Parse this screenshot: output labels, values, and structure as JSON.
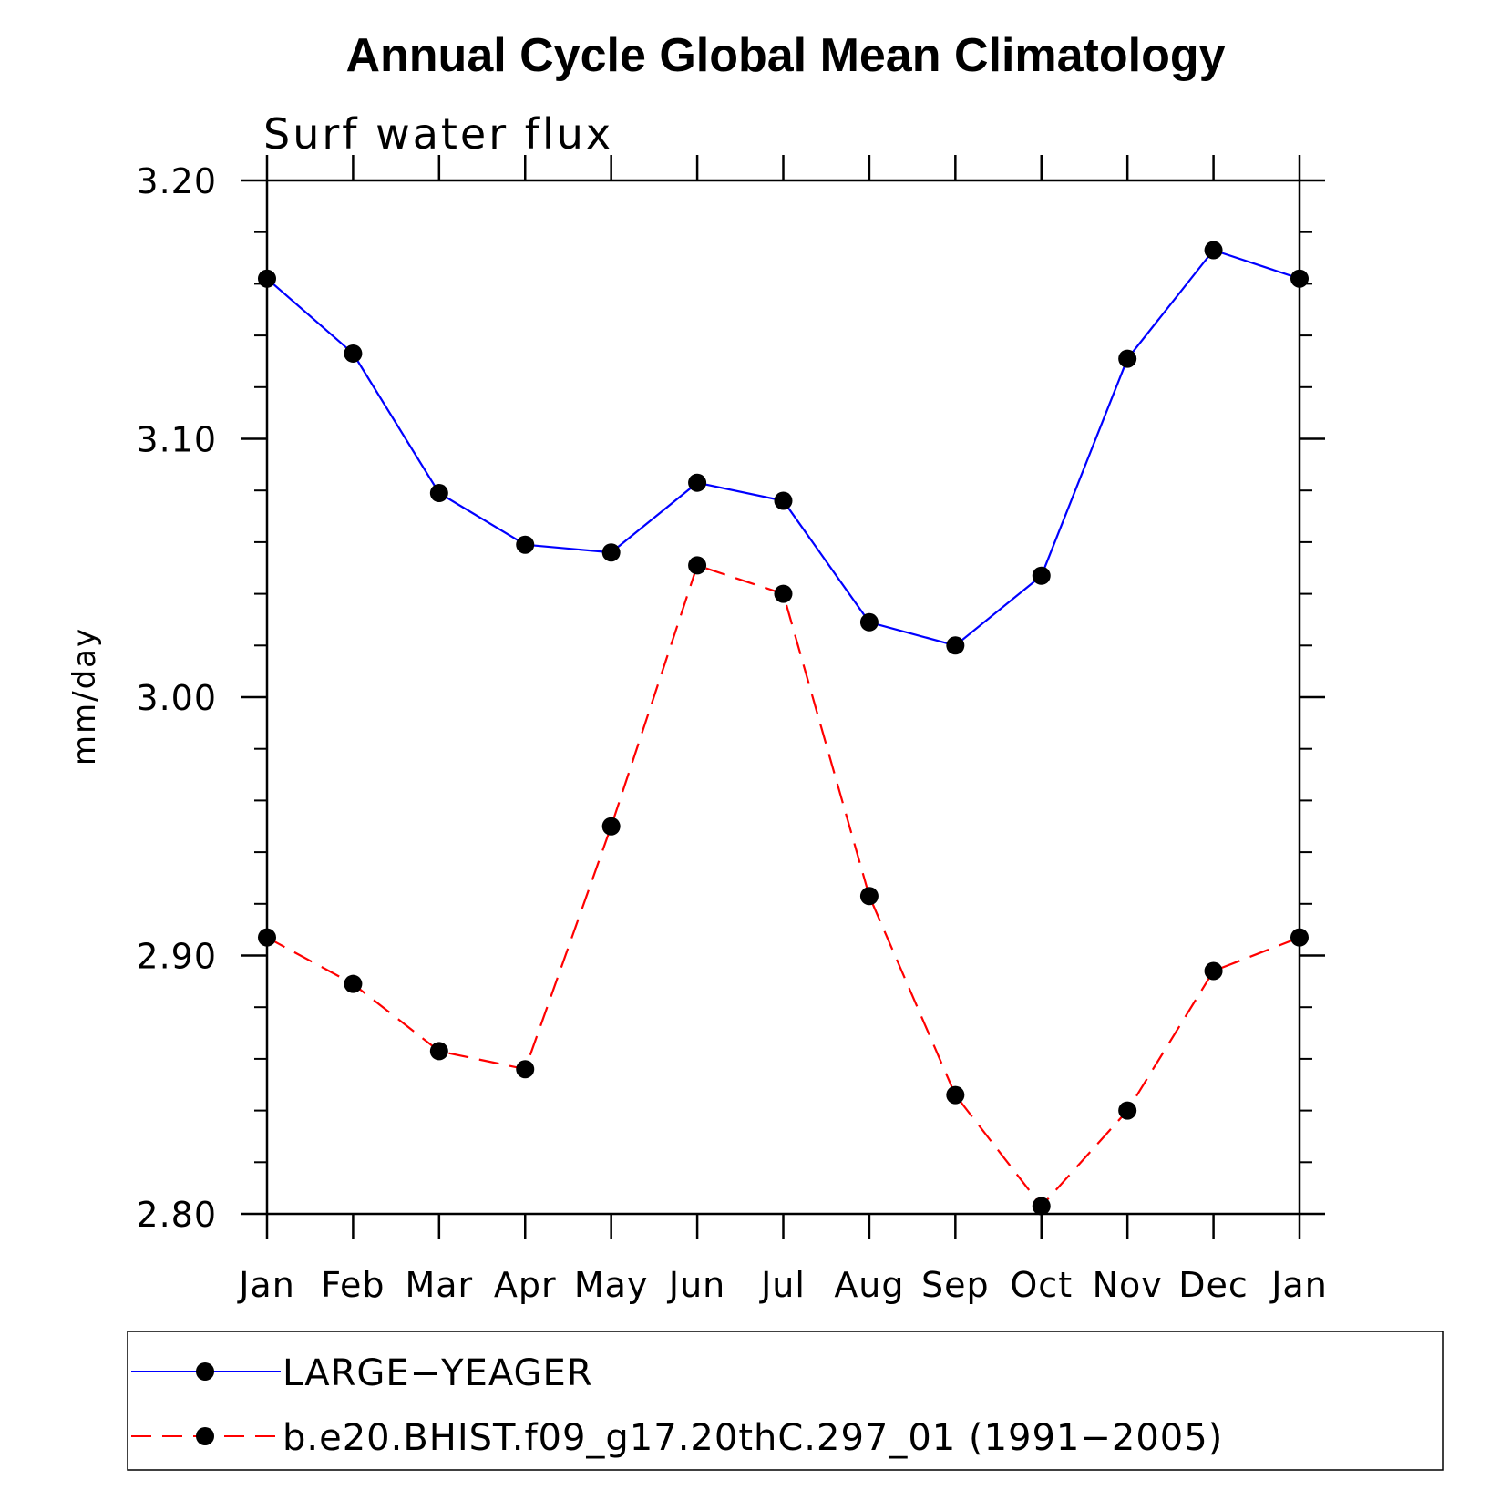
{
  "chart_data": {
    "type": "line",
    "title": "Annual Cycle Global Mean Climatology",
    "subtitle": "Surf water flux",
    "ylabel": "mm/day",
    "xlabel": "",
    "categories": [
      "Jan",
      "Feb",
      "Mar",
      "Apr",
      "May",
      "Jun",
      "Jul",
      "Aug",
      "Sep",
      "Oct",
      "Nov",
      "Dec",
      "Jan"
    ],
    "ylim": [
      2.8,
      3.2
    ],
    "yticks": [
      "3.20",
      "3.10",
      "3.00",
      "2.90",
      "2.80"
    ],
    "grid": false,
    "legend_position": "bottom",
    "series": [
      {
        "name": "LARGE−YEAGER",
        "color": "#0000ff",
        "line_style": "solid",
        "marker": "filled-circle",
        "values": [
          3.162,
          3.133,
          3.079,
          3.059,
          3.056,
          3.083,
          3.076,
          3.029,
          3.02,
          3.047,
          3.131,
          3.173,
          3.162
        ]
      },
      {
        "name": "b.e20.BHIST.f09_g17.20thC.297_01 (1991−2005)",
        "color": "#ff0000",
        "line_style": "dashed",
        "marker": "filled-circle",
        "values": [
          2.907,
          2.889,
          2.863,
          2.856,
          2.95,
          3.051,
          3.04,
          2.923,
          2.846,
          2.803,
          2.84,
          2.894,
          2.907
        ]
      }
    ]
  }
}
